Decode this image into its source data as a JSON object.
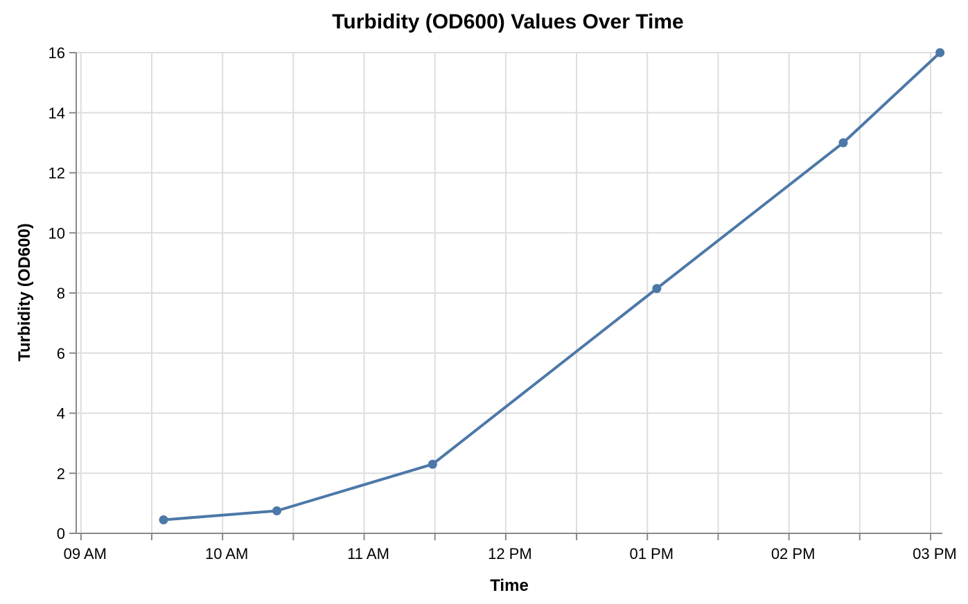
{
  "chart_data": {
    "type": "line",
    "title": "Turbidity (OD600) Values Over Time",
    "xlabel": "Time",
    "ylabel": "Turbidity (OD600)",
    "x_tick_labels": [
      "09 AM",
      "10 AM",
      "11 AM",
      "12 PM",
      "01 PM",
      "02 PM",
      "03 PM"
    ],
    "y_ticks": [
      0,
      2,
      4,
      6,
      8,
      10,
      12,
      14,
      16
    ],
    "ylim": [
      0,
      16
    ],
    "xlim": [
      "08:58",
      "15:05"
    ],
    "grid": true,
    "series": [
      {
        "color": "#4c78a8",
        "points": [
          {
            "x": "09:35",
            "y": 0.45
          },
          {
            "x": "10:23",
            "y": 0.75
          },
          {
            "x": "11:29",
            "y": 2.3
          },
          {
            "x": "13:04",
            "y": 8.15
          },
          {
            "x": "14:23",
            "y": 13.0
          },
          {
            "x": "15:04",
            "y": 16.0
          }
        ]
      }
    ]
  }
}
